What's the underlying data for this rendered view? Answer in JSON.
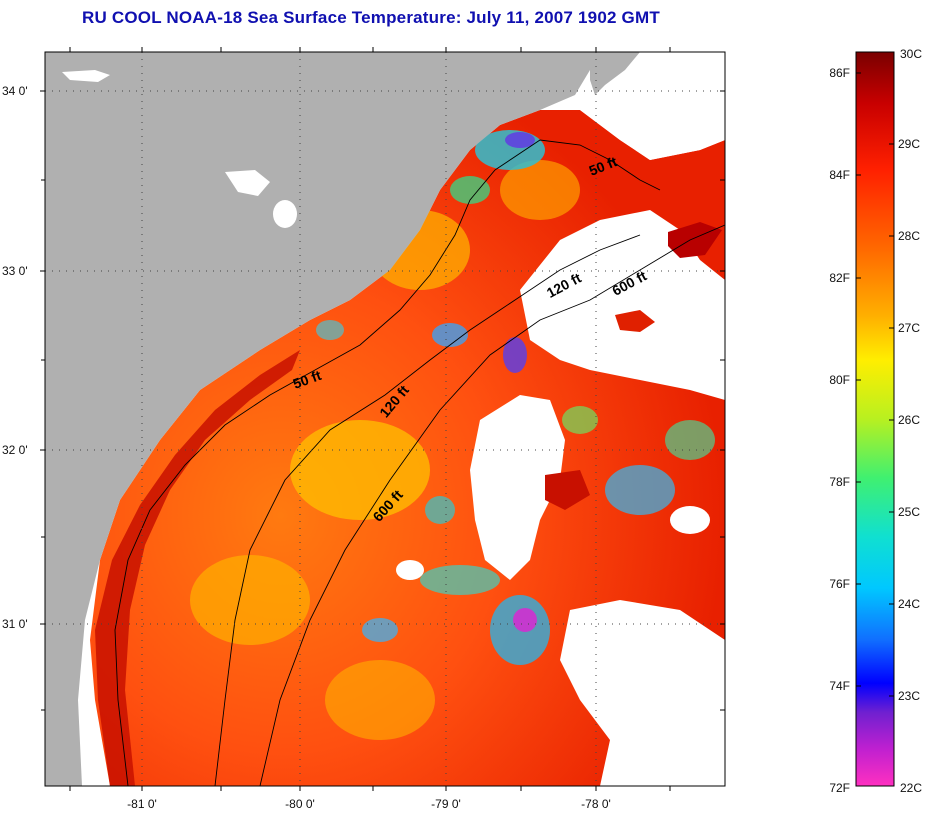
{
  "title": "RU COOL  NOAA-18  Sea Surface Temperature:  July 11, 2007 1902 GMT",
  "map": {
    "lat_labels": [
      "34 0'",
      "33 0'",
      "32 0'",
      "31 0'"
    ],
    "lon_labels": [
      "-81 0'",
      "-80 0'",
      "-79 0'",
      "-78 0'"
    ],
    "contours": [
      "50 ft",
      "120 ft",
      "600 ft",
      "50 ft",
      "120 ft",
      "600 ft"
    ],
    "colors": {
      "land": "#b0b0b0",
      "cloud": "#ffffff",
      "frame": "#000000"
    }
  },
  "colorbar": {
    "f_labels": [
      "86F",
      "84F",
      "82F",
      "80F",
      "78F",
      "76F",
      "74F",
      "72F"
    ],
    "c_labels": [
      "30C",
      "29C",
      "28C",
      "27C",
      "26C",
      "25C",
      "24C",
      "23C",
      "22C"
    ],
    "gradient": [
      "#7a0000",
      "#c80000",
      "#ff2000",
      "#ff6a00",
      "#ffb000",
      "#ffee00",
      "#b8f020",
      "#40f070",
      "#10e0d0",
      "#00c8ff",
      "#1070ff",
      "#0000ff",
      "#7020d0",
      "#c020d0",
      "#ff30c0"
    ]
  }
}
